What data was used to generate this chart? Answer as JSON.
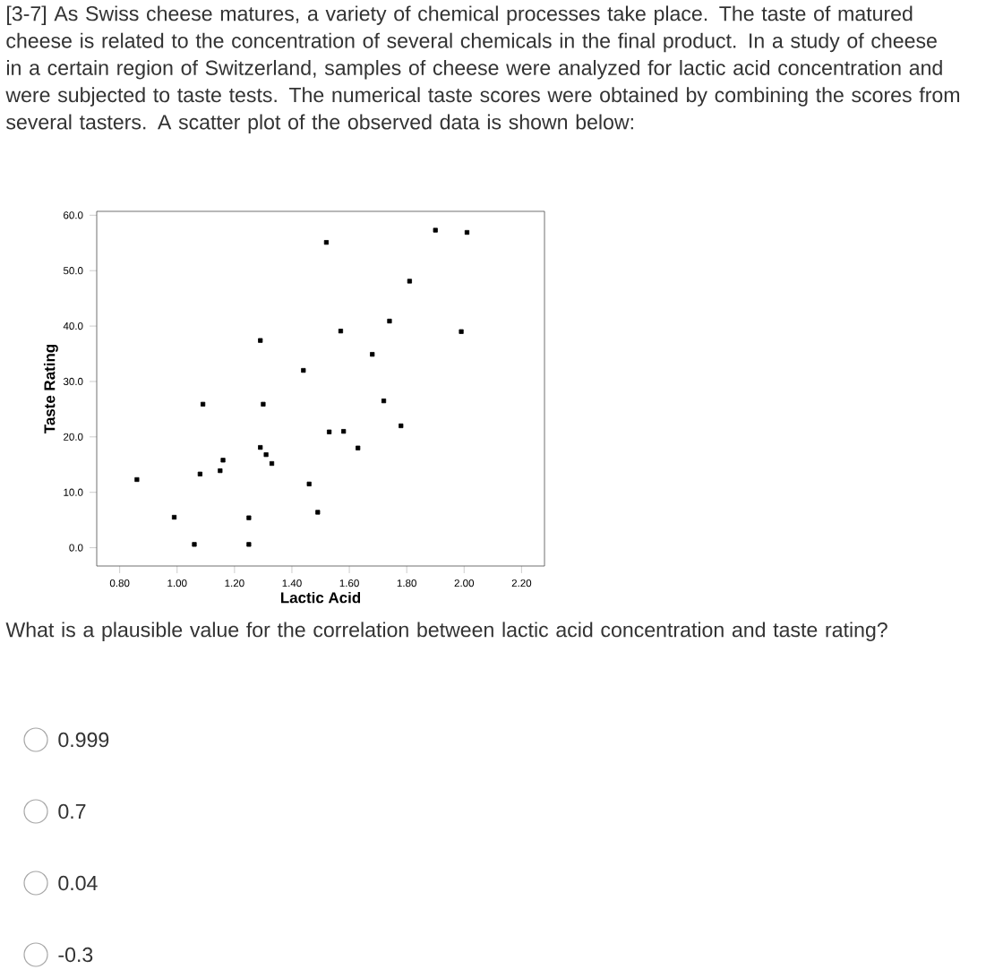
{
  "chart_data": {
    "type": "scatter",
    "title": "[3-7] As Swiss cheese matures, a variety of chemical processes take place. The taste of matured cheese is related to the concentration of several chemicals in the final product. In a study of cheese in a certain region of Switzerland, samples of cheese were analyzed for lactic acid concentration and were subjected to taste tests. The numerical taste scores were obtained by combining the scores from several tasters. A scatter plot of the observed data is shown below:",
    "xlabel": "Lactic Acid",
    "ylabel": "Taste Rating",
    "x": [
      0.86,
      0.99,
      1.06,
      1.08,
      1.09,
      1.15,
      1.16,
      1.25,
      1.25,
      1.29,
      1.29,
      1.3,
      1.31,
      1.33,
      1.44,
      1.46,
      1.49,
      1.52,
      1.53,
      1.57,
      1.58,
      1.63,
      1.68,
      1.72,
      1.74,
      1.78,
      1.81,
      1.9,
      1.99,
      2.01
    ],
    "values": [
      12.3,
      5.5,
      0.6,
      13.3,
      25.9,
      13.9,
      15.8,
      5.4,
      0.6,
      37.4,
      18.1,
      25.9,
      16.8,
      15.2,
      32.0,
      11.5,
      6.4,
      55.1,
      20.9,
      39.1,
      21.0,
      18.0,
      34.9,
      26.5,
      40.9,
      22.0,
      48.1,
      57.3,
      39.0,
      56.9
    ],
    "color": "#000000",
    "marker": "square",
    "xlim": [
      0.72,
      2.28
    ],
    "ylim": [
      -3.3,
      60.7
    ],
    "xticks": [
      {
        "value": 0.8,
        "label": "0.80"
      },
      {
        "value": 1.0,
        "label": "1.00"
      },
      {
        "value": 1.2,
        "label": "1.20"
      },
      {
        "value": 1.4,
        "label": "1.40"
      },
      {
        "value": 1.6,
        "label": "1.60"
      },
      {
        "value": 1.8,
        "label": "1.80"
      },
      {
        "value": 2.0,
        "label": "2.00"
      },
      {
        "value": 2.2,
        "label": "2.20"
      }
    ],
    "yticks": [
      {
        "value": 0,
        "label": "0.0"
      },
      {
        "value": 10,
        "label": "10.0"
      },
      {
        "value": 20,
        "label": "20.0"
      },
      {
        "value": 30,
        "label": "30.0"
      },
      {
        "value": 40,
        "label": "40.0"
      },
      {
        "value": 50,
        "label": "50.0"
      },
      {
        "value": 60,
        "label": "60.0"
      }
    ],
    "annotations": [
      "What is a plausible value for the correlation between lactic acid concentration and taste rating?",
      "0.999",
      "0.7",
      "0.04",
      "-0.3"
    ]
  }
}
